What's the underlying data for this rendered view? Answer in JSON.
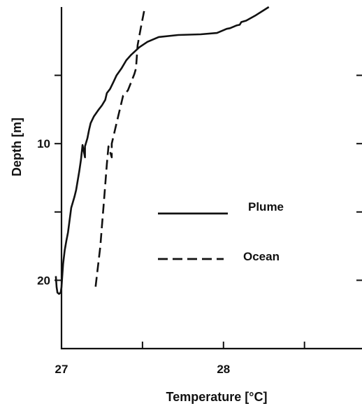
{
  "chart_data": {
    "type": "line",
    "title": "",
    "xlabel": "Temperature [°C]",
    "ylabel": "Depth [m]",
    "xlim": [
      27,
      28.95
    ],
    "ylim": [
      0,
      25
    ],
    "y_inverted": true,
    "x_ticks": [
      27,
      27.5,
      28,
      28.5
    ],
    "x_tick_labels": [
      "27",
      "",
      "28",
      ""
    ],
    "y_ticks": [
      5,
      10,
      15,
      20
    ],
    "y_tick_labels": [
      "",
      "10",
      "",
      "20"
    ],
    "legend_position": "center-right",
    "series": [
      {
        "name": "Plume",
        "style": "solid",
        "color": "#111111",
        "points": [
          [
            28.28,
            0
          ],
          [
            28.24,
            0.3
          ],
          [
            28.2,
            0.6
          ],
          [
            28.17,
            0.8
          ],
          [
            28.14,
            1.0
          ],
          [
            28.11,
            1.1
          ],
          [
            28.1,
            1.3
          ],
          [
            28.08,
            1.35
          ],
          [
            28.04,
            1.55
          ],
          [
            28.02,
            1.6
          ],
          [
            27.96,
            1.9
          ],
          [
            27.86,
            2.0
          ],
          [
            27.72,
            2.05
          ],
          [
            27.6,
            2.2
          ],
          [
            27.53,
            2.55
          ],
          [
            27.48,
            2.95
          ],
          [
            27.43,
            3.5
          ],
          [
            27.4,
            3.9
          ],
          [
            27.37,
            4.5
          ],
          [
            27.34,
            5.0
          ],
          [
            27.32,
            5.5
          ],
          [
            27.3,
            6.0
          ],
          [
            27.28,
            6.3
          ],
          [
            27.27,
            6.8
          ],
          [
            27.25,
            7.2
          ],
          [
            27.23,
            7.5
          ],
          [
            27.2,
            8.0
          ],
          [
            27.18,
            8.5
          ],
          [
            27.17,
            9.0
          ],
          [
            27.16,
            9.6
          ],
          [
            27.145,
            10.2
          ],
          [
            27.145,
            11.0
          ],
          [
            27.13,
            10.1
          ],
          [
            27.12,
            11.2
          ],
          [
            27.11,
            12.0
          ],
          [
            27.1,
            12.7
          ],
          [
            27.09,
            13.4
          ],
          [
            27.08,
            13.9
          ],
          [
            27.07,
            14.3
          ],
          [
            27.06,
            14.7
          ],
          [
            27.05,
            15.6
          ],
          [
            27.04,
            16.5
          ],
          [
            27.03,
            17.1
          ],
          [
            27.02,
            17.8
          ],
          [
            27.01,
            18.8
          ],
          [
            27.005,
            19.6
          ],
          [
            27.0,
            20.5
          ],
          [
            26.995,
            20.9
          ],
          [
            26.985,
            21.0
          ],
          [
            26.975,
            20.9
          ],
          [
            26.97,
            20.5
          ],
          [
            26.965,
            19.7
          ]
        ]
      },
      {
        "name": "Ocean",
        "style": "dashed",
        "color": "#111111",
        "points": [
          [
            27.51,
            0.3
          ],
          [
            27.49,
            1.5
          ],
          [
            27.47,
            2.8
          ],
          [
            27.46,
            4.5
          ],
          [
            27.45,
            4.9
          ],
          [
            27.43,
            5.5
          ],
          [
            27.41,
            6.1
          ],
          [
            27.38,
            6.5
          ],
          [
            27.37,
            7.0
          ],
          [
            27.35,
            8.0
          ],
          [
            27.33,
            9.0
          ],
          [
            27.31,
            10.0
          ],
          [
            27.31,
            11.0
          ],
          [
            27.29,
            10.2
          ],
          [
            27.28,
            11.5
          ],
          [
            27.27,
            13.0
          ],
          [
            27.26,
            14.5
          ],
          [
            27.25,
            16.0
          ],
          [
            27.24,
            17.5
          ],
          [
            27.23,
            18.5
          ],
          [
            27.22,
            19.5
          ],
          [
            27.21,
            20.5
          ]
        ]
      }
    ]
  }
}
